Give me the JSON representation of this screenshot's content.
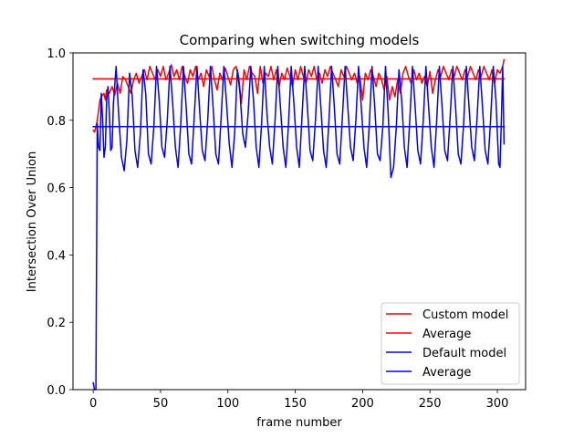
{
  "chart_data": {
    "type": "line",
    "title": "Comparing when switching models",
    "xlabel": "frame number",
    "ylabel": "Intersection Over Union",
    "xlim": [
      -15,
      321
    ],
    "ylim": [
      0,
      1
    ],
    "xticks": [
      0,
      50,
      100,
      150,
      200,
      250,
      300
    ],
    "yticks": [
      0.0,
      0.2,
      0.4,
      0.6,
      0.8,
      1.0
    ],
    "ytick_labels": [
      "0.0",
      "0.2",
      "0.4",
      "0.6",
      "0.8",
      "1.0"
    ],
    "grid": false,
    "legend_position": "lower right",
    "series": [
      {
        "name": "Custom model",
        "color": "#ff0000",
        "keypoints": [
          [
            0,
            0.77
          ],
          [
            1,
            0.765
          ],
          [
            2,
            0.78
          ],
          [
            3,
            0.8
          ],
          [
            4,
            0.83
          ],
          [
            5,
            0.86
          ],
          [
            6,
            0.87
          ],
          [
            7,
            0.875
          ],
          [
            8,
            0.88
          ],
          [
            9,
            0.86
          ],
          [
            10,
            0.89
          ],
          [
            12,
            0.88
          ],
          [
            14,
            0.9
          ],
          [
            16,
            0.875
          ],
          [
            18,
            0.91
          ],
          [
            20,
            0.88
          ],
          [
            22,
            0.93
          ],
          [
            24,
            0.92
          ],
          [
            26,
            0.9
          ],
          [
            28,
            0.88
          ],
          [
            30,
            0.92
          ],
          [
            32,
            0.94
          ],
          [
            34,
            0.91
          ],
          [
            36,
            0.93
          ],
          [
            38,
            0.95
          ],
          [
            40,
            0.92
          ],
          [
            42,
            0.96
          ],
          [
            44,
            0.94
          ],
          [
            46,
            0.92
          ],
          [
            48,
            0.95
          ],
          [
            50,
            0.93
          ],
          [
            52,
            0.96
          ],
          [
            54,
            0.92
          ],
          [
            56,
            0.94
          ],
          [
            58,
            0.965
          ],
          [
            60,
            0.93
          ],
          [
            62,
            0.95
          ],
          [
            64,
            0.92
          ],
          [
            66,
            0.96
          ],
          [
            68,
            0.93
          ],
          [
            70,
            0.91
          ],
          [
            72,
            0.95
          ],
          [
            74,
            0.93
          ],
          [
            76,
            0.96
          ],
          [
            78,
            0.92
          ],
          [
            80,
            0.94
          ],
          [
            82,
            0.9
          ],
          [
            84,
            0.95
          ],
          [
            86,
            0.93
          ],
          [
            88,
            0.96
          ],
          [
            90,
            0.92
          ],
          [
            92,
            0.89
          ],
          [
            94,
            0.94
          ],
          [
            96,
            0.92
          ],
          [
            98,
            0.955
          ],
          [
            100,
            0.93
          ],
          [
            102,
            0.905
          ],
          [
            104,
            0.95
          ],
          [
            106,
            0.96
          ],
          [
            108,
            0.93
          ],
          [
            110,
            0.85
          ],
          [
            112,
            0.95
          ],
          [
            114,
            0.92
          ],
          [
            116,
            0.96
          ],
          [
            118,
            0.94
          ],
          [
            120,
            0.93
          ],
          [
            122,
            0.88
          ],
          [
            124,
            0.96
          ],
          [
            126,
            0.91
          ],
          [
            128,
            0.94
          ],
          [
            130,
            0.93
          ],
          [
            132,
            0.96
          ],
          [
            134,
            0.92
          ],
          [
            136,
            0.95
          ],
          [
            138,
            0.9
          ],
          [
            140,
            0.94
          ],
          [
            142,
            0.92
          ],
          [
            144,
            0.955
          ],
          [
            146,
            0.93
          ],
          [
            148,
            0.9
          ],
          [
            150,
            0.95
          ],
          [
            152,
            0.92
          ],
          [
            154,
            0.96
          ],
          [
            156,
            0.93
          ],
          [
            158,
            0.91
          ],
          [
            160,
            0.95
          ],
          [
            162,
            0.93
          ],
          [
            164,
            0.96
          ],
          [
            166,
            0.92
          ],
          [
            168,
            0.94
          ],
          [
            170,
            0.91
          ],
          [
            172,
            0.95
          ],
          [
            174,
            0.93
          ],
          [
            176,
            0.96
          ],
          [
            178,
            0.94
          ],
          [
            180,
            0.92
          ],
          [
            182,
            0.9
          ],
          [
            184,
            0.95
          ],
          [
            186,
            0.93
          ],
          [
            188,
            0.96
          ],
          [
            190,
            0.94
          ],
          [
            192,
            0.92
          ],
          [
            194,
            0.94
          ],
          [
            196,
            0.91
          ],
          [
            198,
            0.93
          ],
          [
            200,
            0.86
          ],
          [
            202,
            0.94
          ],
          [
            204,
            0.92
          ],
          [
            206,
            0.95
          ],
          [
            208,
            0.93
          ],
          [
            210,
            0.9
          ],
          [
            212,
            0.94
          ],
          [
            214,
            0.92
          ],
          [
            216,
            0.89
          ],
          [
            218,
            0.93
          ],
          [
            220,
            0.86
          ],
          [
            222,
            0.9
          ],
          [
            224,
            0.87
          ],
          [
            226,
            0.92
          ],
          [
            228,
            0.88
          ],
          [
            230,
            0.94
          ],
          [
            232,
            0.96
          ],
          [
            234,
            0.93
          ],
          [
            236,
            0.91
          ],
          [
            238,
            0.95
          ],
          [
            240,
            0.92
          ],
          [
            242,
            0.94
          ],
          [
            244,
            0.91
          ],
          [
            246,
            0.93
          ],
          [
            248,
            0.9
          ],
          [
            250,
            0.945
          ],
          [
            252,
            0.88
          ],
          [
            254,
            0.92
          ],
          [
            256,
            0.95
          ],
          [
            258,
            0.93
          ],
          [
            260,
            0.96
          ],
          [
            262,
            0.94
          ],
          [
            264,
            0.92
          ],
          [
            266,
            0.95
          ],
          [
            268,
            0.93
          ],
          [
            270,
            0.96
          ],
          [
            272,
            0.94
          ],
          [
            274,
            0.92
          ],
          [
            276,
            0.95
          ],
          [
            278,
            0.93
          ],
          [
            280,
            0.96
          ],
          [
            282,
            0.94
          ],
          [
            284,
            0.92
          ],
          [
            286,
            0.95
          ],
          [
            288,
            0.93
          ],
          [
            290,
            0.96
          ],
          [
            292,
            0.94
          ],
          [
            294,
            0.92
          ],
          [
            296,
            0.95
          ],
          [
            298,
            0.91
          ],
          [
            300,
            0.95
          ],
          [
            302,
            0.94
          ],
          [
            304,
            0.96
          ],
          [
            305,
            0.98
          ]
        ]
      },
      {
        "name": "Average",
        "color": "#ff0000",
        "x_range": [
          0,
          305
        ],
        "value": 0.923
      },
      {
        "name": "Default model",
        "color": "#0000ff",
        "keypoints": [
          [
            0,
            0.02
          ],
          [
            1,
            0.0
          ],
          [
            2,
            0.0
          ],
          [
            3,
            0.79
          ],
          [
            4,
            0.72
          ],
          [
            5,
            0.71
          ],
          [
            6,
            0.88
          ],
          [
            7,
            0.8
          ],
          [
            8,
            0.69
          ],
          [
            9,
            0.72
          ],
          [
            10,
            0.86
          ],
          [
            11,
            0.9
          ],
          [
            12,
            0.82
          ],
          [
            13,
            0.71
          ],
          [
            14,
            0.72
          ],
          [
            15,
            0.85
          ],
          [
            17,
            0.96
          ],
          [
            19,
            0.81
          ],
          [
            21,
            0.69
          ],
          [
            23,
            0.65
          ],
          [
            25,
            0.74
          ],
          [
            27,
            0.94
          ],
          [
            29,
            0.87
          ],
          [
            31,
            0.71
          ],
          [
            33,
            0.66
          ],
          [
            35,
            0.76
          ],
          [
            37,
            0.95
          ],
          [
            39,
            0.88
          ],
          [
            41,
            0.7
          ],
          [
            43,
            0.67
          ],
          [
            45,
            0.78
          ],
          [
            47,
            0.96
          ],
          [
            49,
            0.86
          ],
          [
            51,
            0.72
          ],
          [
            53,
            0.69
          ],
          [
            55,
            0.8
          ],
          [
            57,
            0.96
          ],
          [
            59,
            0.85
          ],
          [
            61,
            0.72
          ],
          [
            63,
            0.66
          ],
          [
            65,
            0.79
          ],
          [
            67,
            0.96
          ],
          [
            69,
            0.84
          ],
          [
            71,
            0.7
          ],
          [
            73,
            0.67
          ],
          [
            75,
            0.81
          ],
          [
            77,
            0.96
          ],
          [
            79,
            0.83
          ],
          [
            81,
            0.71
          ],
          [
            83,
            0.68
          ],
          [
            85,
            0.8
          ],
          [
            87,
            0.96
          ],
          [
            89,
            0.84
          ],
          [
            91,
            0.7
          ],
          [
            93,
            0.67
          ],
          [
            95,
            0.81
          ],
          [
            97,
            0.96
          ],
          [
            99,
            0.85
          ],
          [
            101,
            0.73
          ],
          [
            103,
            0.66
          ],
          [
            105,
            0.76
          ],
          [
            107,
            0.95
          ],
          [
            109,
            0.88
          ],
          [
            111,
            0.76
          ],
          [
            113,
            0.72
          ],
          [
            115,
            0.82
          ],
          [
            117,
            0.96
          ],
          [
            119,
            0.86
          ],
          [
            121,
            0.72
          ],
          [
            123,
            0.66
          ],
          [
            125,
            0.79
          ],
          [
            127,
            0.96
          ],
          [
            129,
            0.82
          ],
          [
            131,
            0.72
          ],
          [
            133,
            0.67
          ],
          [
            135,
            0.8
          ],
          [
            137,
            0.96
          ],
          [
            139,
            0.84
          ],
          [
            141,
            0.72
          ],
          [
            143,
            0.66
          ],
          [
            145,
            0.79
          ],
          [
            147,
            0.96
          ],
          [
            149,
            0.85
          ],
          [
            151,
            0.72
          ],
          [
            153,
            0.66
          ],
          [
            155,
            0.81
          ],
          [
            157,
            0.96
          ],
          [
            159,
            0.84
          ],
          [
            161,
            0.71
          ],
          [
            163,
            0.68
          ],
          [
            165,
            0.8
          ],
          [
            167,
            0.96
          ],
          [
            169,
            0.84
          ],
          [
            171,
            0.71
          ],
          [
            173,
            0.66
          ],
          [
            175,
            0.8
          ],
          [
            177,
            0.96
          ],
          [
            179,
            0.84
          ],
          [
            181,
            0.7
          ],
          [
            183,
            0.67
          ],
          [
            185,
            0.81
          ],
          [
            187,
            0.96
          ],
          [
            189,
            0.84
          ],
          [
            191,
            0.72
          ],
          [
            193,
            0.68
          ],
          [
            195,
            0.8
          ],
          [
            197,
            0.96
          ],
          [
            199,
            0.84
          ],
          [
            201,
            0.72
          ],
          [
            203,
            0.66
          ],
          [
            205,
            0.79
          ],
          [
            207,
            0.96
          ],
          [
            209,
            0.84
          ],
          [
            211,
            0.7
          ],
          [
            213,
            0.68
          ],
          [
            215,
            0.78
          ],
          [
            217,
            0.96
          ],
          [
            219,
            0.82
          ],
          [
            221,
            0.63
          ],
          [
            223,
            0.66
          ],
          [
            225,
            0.78
          ],
          [
            227,
            0.95
          ],
          [
            229,
            0.86
          ],
          [
            231,
            0.72
          ],
          [
            233,
            0.66
          ],
          [
            235,
            0.8
          ],
          [
            237,
            0.96
          ],
          [
            239,
            0.84
          ],
          [
            241,
            0.71
          ],
          [
            243,
            0.67
          ],
          [
            245,
            0.8
          ],
          [
            247,
            0.96
          ],
          [
            249,
            0.84
          ],
          [
            251,
            0.72
          ],
          [
            253,
            0.66
          ],
          [
            255,
            0.8
          ],
          [
            257,
            0.96
          ],
          [
            259,
            0.84
          ],
          [
            261,
            0.71
          ],
          [
            263,
            0.68
          ],
          [
            265,
            0.81
          ],
          [
            267,
            0.96
          ],
          [
            269,
            0.84
          ],
          [
            271,
            0.7
          ],
          [
            273,
            0.67
          ],
          [
            275,
            0.79
          ],
          [
            277,
            0.96
          ],
          [
            279,
            0.84
          ],
          [
            281,
            0.72
          ],
          [
            283,
            0.68
          ],
          [
            285,
            0.81
          ],
          [
            287,
            0.96
          ],
          [
            289,
            0.84
          ],
          [
            291,
            0.71
          ],
          [
            293,
            0.67
          ],
          [
            295,
            0.8
          ],
          [
            297,
            0.96
          ],
          [
            299,
            0.86
          ],
          [
            301,
            0.67
          ],
          [
            302,
            0.66
          ],
          [
            303,
            0.8
          ],
          [
            304,
            0.96
          ],
          [
            305,
            0.73
          ]
        ]
      },
      {
        "name": "Average",
        "color": "#0000ff",
        "x_range": [
          0,
          305
        ],
        "value": 0.781
      }
    ]
  }
}
